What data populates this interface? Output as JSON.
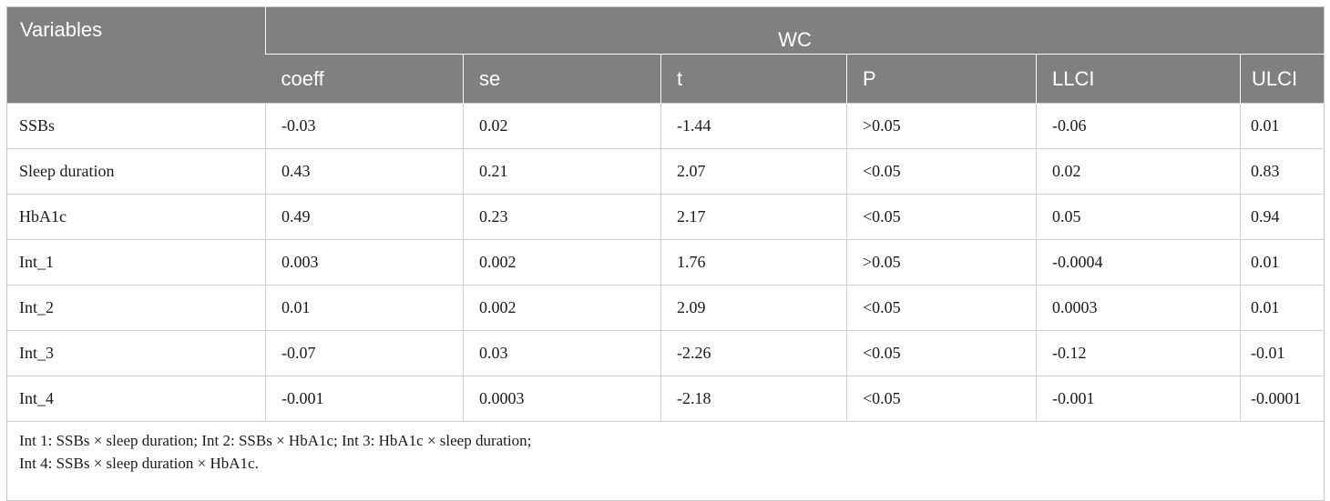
{
  "table": {
    "header": {
      "variables": "Variables",
      "group": "WC",
      "columns": [
        "coeff",
        "se",
        "t",
        "P",
        "LLCI",
        "ULCI"
      ]
    },
    "rows": [
      {
        "variable": "SSBs",
        "cells": [
          "-0.03",
          "0.02",
          "-1.44",
          ">0.05",
          "-0.06",
          "0.01"
        ]
      },
      {
        "variable": "Sleep duration",
        "cells": [
          "0.43",
          "0.21",
          "2.07",
          "<0.05",
          "0.02",
          "0.83"
        ]
      },
      {
        "variable": "HbA1c",
        "cells": [
          "0.49",
          "0.23",
          "2.17",
          "<0.05",
          "0.05",
          "0.94"
        ]
      },
      {
        "variable": "Int_1",
        "cells": [
          "0.003",
          "0.002",
          "1.76",
          ">0.05",
          "-0.0004",
          "0.01"
        ]
      },
      {
        "variable": "Int_2",
        "cells": [
          "0.01",
          "0.002",
          "2.09",
          "<0.05",
          "0.0003",
          "0.01"
        ]
      },
      {
        "variable": "Int_3",
        "cells": [
          "-0.07",
          "0.03",
          "-2.26",
          "<0.05",
          "-0.12",
          "-0.01"
        ]
      },
      {
        "variable": "Int_4",
        "cells": [
          "-0.001",
          "0.0003",
          "-2.18",
          "<0.05",
          "-0.001",
          "-0.0001"
        ]
      }
    ],
    "footnote": [
      "Int 1: SSBs × sleep duration; Int 2: SSBs × HbA1c; Int 3: HbA1c × sleep duration;",
      "Int 4: SSBs × sleep duration × HbA1c."
    ]
  }
}
